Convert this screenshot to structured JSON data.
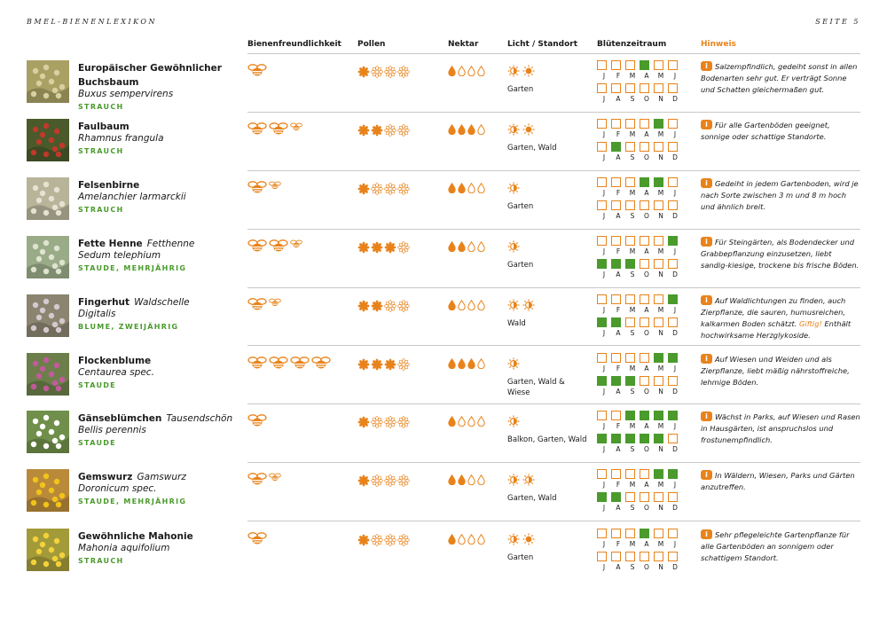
{
  "header": {
    "left": "BMEL-BIENENLEXIKON",
    "right": "SEITE 5"
  },
  "columns": {
    "bienen": "Bienenfreundlichkeit",
    "pollen": "Pollen",
    "nektar": "Nektar",
    "licht": "Licht / Standort",
    "bluete": "Blütenzeitraum",
    "hinweis": "Hinweis"
  },
  "months_row1": [
    "J",
    "F",
    "M",
    "A",
    "M",
    "J"
  ],
  "months_row2": [
    "J",
    "A",
    "S",
    "O",
    "N",
    "D"
  ],
  "colors": {
    "accent": "#e8831b",
    "green": "#4a9a2c",
    "line": "#c8c8c8"
  },
  "rows": [
    {
      "name": "Europäischer Gewöhnlicher Buchsbaum",
      "name_extra": "",
      "sci": "Buxus sempervirens",
      "category": "STRAUCH",
      "bees": [
        "big"
      ],
      "pollen": [
        1,
        0,
        0,
        0
      ],
      "nektar": [
        1,
        0,
        0,
        0
      ],
      "sun": [
        "half",
        "full"
      ],
      "location": "Garten",
      "bloom": [
        0,
        0,
        0,
        1,
        0,
        0,
        0,
        0,
        0,
        0,
        0,
        0
      ],
      "note": "Salzempfindlich, gedeiht sonst in allen Bodenarten sehr gut. Er verträgt Sonne und Schatten gleichermaßen gut.",
      "note_warn": "",
      "note_tail": ""
    },
    {
      "name": "Faulbaum",
      "name_extra": "",
      "sci": "Rhamnus frangula",
      "category": "STRAUCH",
      "bees": [
        "big",
        "big",
        "small"
      ],
      "pollen": [
        1,
        1,
        0,
        0
      ],
      "nektar": [
        1,
        1,
        1,
        0
      ],
      "sun": [
        "half",
        "full"
      ],
      "location": "Garten, Wald",
      "bloom": [
        0,
        0,
        0,
        0,
        1,
        0,
        0,
        1,
        0,
        0,
        0,
        0
      ],
      "note": "Für alle Gartenböden geeignet, sonnige oder schattige Standorte.",
      "note_warn": "",
      "note_tail": ""
    },
    {
      "name": "Felsenbirne",
      "name_extra": "",
      "sci": "Amelanchier larmarckii",
      "category": "STRAUCH",
      "bees": [
        "big",
        "small"
      ],
      "pollen": [
        1,
        0,
        0,
        0
      ],
      "nektar": [
        1,
        1,
        0,
        0
      ],
      "sun": [
        "half"
      ],
      "location": "Garten",
      "bloom": [
        0,
        0,
        0,
        1,
        1,
        0,
        0,
        0,
        0,
        0,
        0,
        0
      ],
      "note": "Gedeiht in jedem Gartenboden, wird je nach Sorte zwischen 3 m und 8 m hoch und ähnlich breit.",
      "note_warn": "",
      "note_tail": ""
    },
    {
      "name": "Fette Henne",
      "name_extra": "Fetthenne",
      "sci": "Sedum telephium",
      "category": "STAUDE, MEHRJÄHRIG",
      "bees": [
        "big",
        "big",
        "small"
      ],
      "pollen": [
        1,
        1,
        1,
        0
      ],
      "nektar": [
        1,
        1,
        0,
        0
      ],
      "sun": [
        "half"
      ],
      "location": "Garten",
      "bloom": [
        0,
        0,
        0,
        0,
        0,
        1,
        1,
        1,
        1,
        0,
        0,
        0
      ],
      "note": "Für Steingärten, als Bodendecker und Grabbepflanzung einzusetzen, liebt sandig-kiesige, trockene bis frische Böden.",
      "note_warn": "",
      "note_tail": ""
    },
    {
      "name": "Fingerhut",
      "name_extra": "Waldschelle",
      "sci": "Digitalis",
      "category": "BLUME, ZWEIJÄHRIG",
      "bees": [
        "big",
        "small"
      ],
      "pollen": [
        1,
        1,
        0,
        0
      ],
      "nektar": [
        1,
        0,
        0,
        0
      ],
      "sun": [
        "half",
        "half"
      ],
      "location": "Wald",
      "bloom": [
        0,
        0,
        0,
        0,
        0,
        1,
        1,
        1,
        0,
        0,
        0,
        0
      ],
      "note": "Auf Waldlichtungen zu finden, auch Zierpflanze, die sauren, humusreichen, kalkarmen Boden schätzt.",
      "note_warn": "Giftig!",
      "note_tail": "Enthält hochwirksame Herzglykoside."
    },
    {
      "name": "Flockenblume",
      "name_extra": "",
      "sci": "Centaurea spec.",
      "category": "STAUDE",
      "bees": [
        "big",
        "big",
        "big",
        "big"
      ],
      "pollen": [
        1,
        1,
        1,
        0
      ],
      "nektar": [
        1,
        1,
        1,
        0
      ],
      "sun": [
        "half"
      ],
      "location": "Garten, Wald & Wiese",
      "bloom": [
        0,
        0,
        0,
        0,
        1,
        1,
        1,
        1,
        1,
        0,
        0,
        0
      ],
      "note": "Auf Wiesen und Weiden und als Zierpflanze, liebt mäßig nährstoffreiche, lehmige Böden.",
      "note_warn": "",
      "note_tail": ""
    },
    {
      "name": "Gänseblümchen",
      "name_extra": "Tausendschön",
      "sci": "Bellis perennis",
      "category": "STAUDE",
      "bees": [
        "big"
      ],
      "pollen": [
        1,
        0,
        0,
        0
      ],
      "nektar": [
        1,
        0,
        0,
        0
      ],
      "sun": [
        "half"
      ],
      "location": "Balkon, Garten, Wald",
      "bloom": [
        0,
        0,
        1,
        1,
        1,
        1,
        1,
        1,
        1,
        1,
        1,
        0
      ],
      "note": "Wächst in Parks, auf Wiesen und Rasen in Hausgärten, ist anspruchslos und frostunempfindlich.",
      "note_warn": "",
      "note_tail": ""
    },
    {
      "name": "Gemswurz",
      "name_extra": "Gamswurz",
      "sci": "Doronicum spec.",
      "category": "STAUDE, MEHRJÄHRIG",
      "bees": [
        "big",
        "small"
      ],
      "pollen": [
        1,
        0,
        0,
        0
      ],
      "nektar": [
        1,
        1,
        0,
        0
      ],
      "sun": [
        "half",
        "half"
      ],
      "location": "Garten, Wald",
      "bloom": [
        0,
        0,
        0,
        0,
        1,
        1,
        1,
        1,
        0,
        0,
        0,
        0
      ],
      "note": "In Wäldern, Wiesen, Parks und Gärten anzutreffen.",
      "note_warn": "",
      "note_tail": ""
    },
    {
      "name": "Gewöhnliche Mahonie",
      "name_extra": "",
      "sci": "Mahonia aquifolium",
      "category": "STRAUCH",
      "bees": [
        "big"
      ],
      "pollen": [
        1,
        0,
        0,
        0
      ],
      "nektar": [
        1,
        0,
        0,
        0
      ],
      "sun": [
        "half",
        "full"
      ],
      "location": "Garten",
      "bloom": [
        0,
        0,
        0,
        1,
        0,
        0,
        0,
        0,
        0,
        0,
        0,
        0
      ],
      "note": "Sehr pflegeleichte Gartenpflanze für alle Gartenböden an sonnigem oder schattigem Standort.",
      "note_warn": "",
      "note_tail": ""
    }
  ]
}
